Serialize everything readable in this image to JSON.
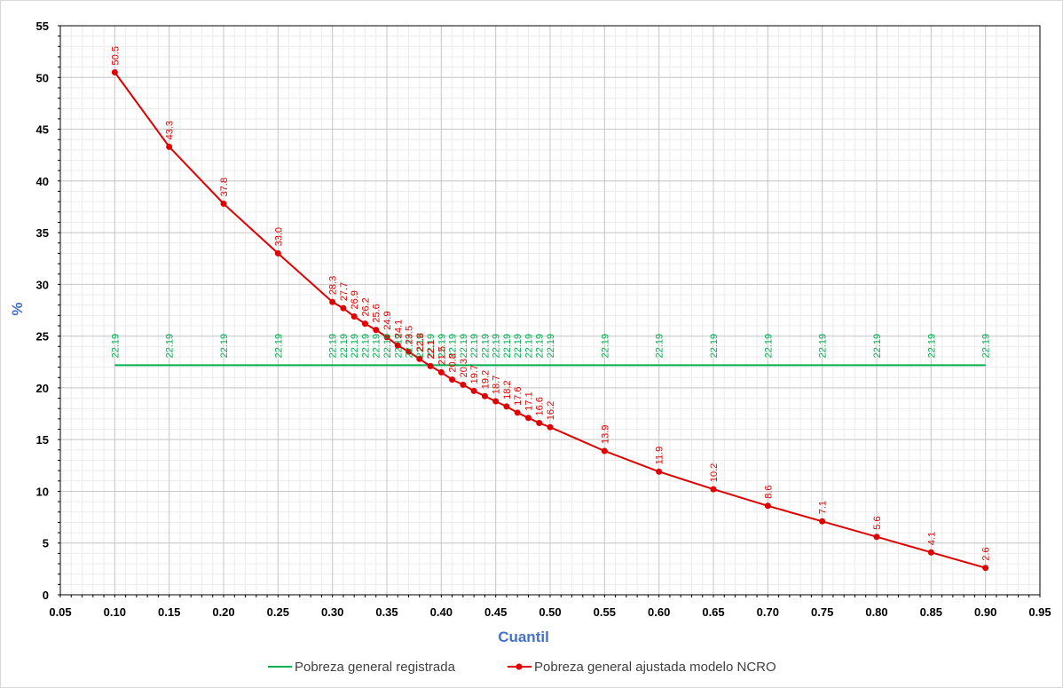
{
  "chart_data": {
    "type": "line",
    "title": "",
    "xlabel": "Cuantil",
    "ylabel": "%",
    "xlim": [
      0.05,
      0.95
    ],
    "ylim": [
      0,
      55
    ],
    "x_ticks": [
      "0.05",
      "0.10",
      "0.15",
      "0.20",
      "0.25",
      "0.30",
      "0.35",
      "0.40",
      "0.45",
      "0.50",
      "0.55",
      "0.60",
      "0.65",
      "0.70",
      "0.75",
      "0.80",
      "0.85",
      "0.90",
      "0.95"
    ],
    "y_ticks": [
      "0",
      "5",
      "10",
      "15",
      "20",
      "25",
      "30",
      "35",
      "40",
      "45",
      "50",
      "55"
    ],
    "grid": true,
    "legend_position": "bottom",
    "series": [
      {
        "name": "Pobreza general registrada",
        "color": "#00b050",
        "marker": "none",
        "x": [
          0.1,
          0.15,
          0.2,
          0.25,
          0.3,
          0.31,
          0.32,
          0.33,
          0.34,
          0.35,
          0.36,
          0.37,
          0.38,
          0.39,
          0.4,
          0.41,
          0.42,
          0.43,
          0.44,
          0.45,
          0.46,
          0.47,
          0.48,
          0.49,
          0.5,
          0.55,
          0.6,
          0.65,
          0.7,
          0.75,
          0.8,
          0.85,
          0.9
        ],
        "y": [
          22.19,
          22.19,
          22.19,
          22.19,
          22.19,
          22.19,
          22.19,
          22.19,
          22.19,
          22.19,
          22.19,
          22.19,
          22.19,
          22.19,
          22.19,
          22.19,
          22.19,
          22.19,
          22.19,
          22.19,
          22.19,
          22.19,
          22.19,
          22.19,
          22.19,
          22.19,
          22.19,
          22.19,
          22.19,
          22.19,
          22.19,
          22.19,
          22.19
        ],
        "labels": [
          "22.19",
          "22.19",
          "22.19",
          "22.19",
          "22.19",
          "22.19",
          "22.19",
          "22.19",
          "22.19",
          "22.19",
          "22.19",
          "22.19",
          "22.19",
          "22.19",
          "22.19",
          "22.19",
          "22.19",
          "22.19",
          "22.19",
          "22.19",
          "22.19",
          "22.19",
          "22.19",
          "22.19",
          "22.19",
          "22.19",
          "22.19",
          "22.19",
          "22.19",
          "22.19",
          "22.19",
          "22.19",
          "22.19"
        ]
      },
      {
        "name": "Pobreza general ajustada modelo NCRO",
        "color": "#e00000",
        "marker": "circle",
        "x": [
          0.1,
          0.15,
          0.2,
          0.25,
          0.3,
          0.31,
          0.32,
          0.33,
          0.34,
          0.35,
          0.36,
          0.37,
          0.38,
          0.39,
          0.4,
          0.41,
          0.42,
          0.43,
          0.44,
          0.45,
          0.46,
          0.47,
          0.48,
          0.49,
          0.5,
          0.55,
          0.6,
          0.65,
          0.7,
          0.75,
          0.8,
          0.85,
          0.9
        ],
        "y": [
          50.5,
          43.3,
          37.8,
          33.0,
          28.3,
          27.7,
          26.9,
          26.2,
          25.6,
          24.9,
          24.1,
          23.5,
          22.8,
          22.1,
          21.5,
          20.8,
          20.3,
          19.7,
          19.2,
          18.7,
          18.2,
          17.6,
          17.1,
          16.6,
          16.2,
          13.9,
          11.9,
          10.2,
          8.6,
          7.1,
          5.6,
          4.1,
          2.6
        ],
        "labels": [
          "50.5",
          "43.3",
          "37.8",
          "33.0",
          "28.3",
          "27.7",
          "26.9",
          "26.2",
          "25.6",
          "24.9",
          "24.1",
          "23.5",
          "22.8",
          "22.1",
          "21.5",
          "20.8",
          "20.3",
          "19.7",
          "19.2",
          "18.7",
          "18.2",
          "17.6",
          "17.1",
          "16.6",
          "16.2",
          "13.9",
          "11.9",
          "10.2",
          "8.6",
          "7.1",
          "5.6",
          "4.1",
          "2.6"
        ]
      }
    ]
  }
}
